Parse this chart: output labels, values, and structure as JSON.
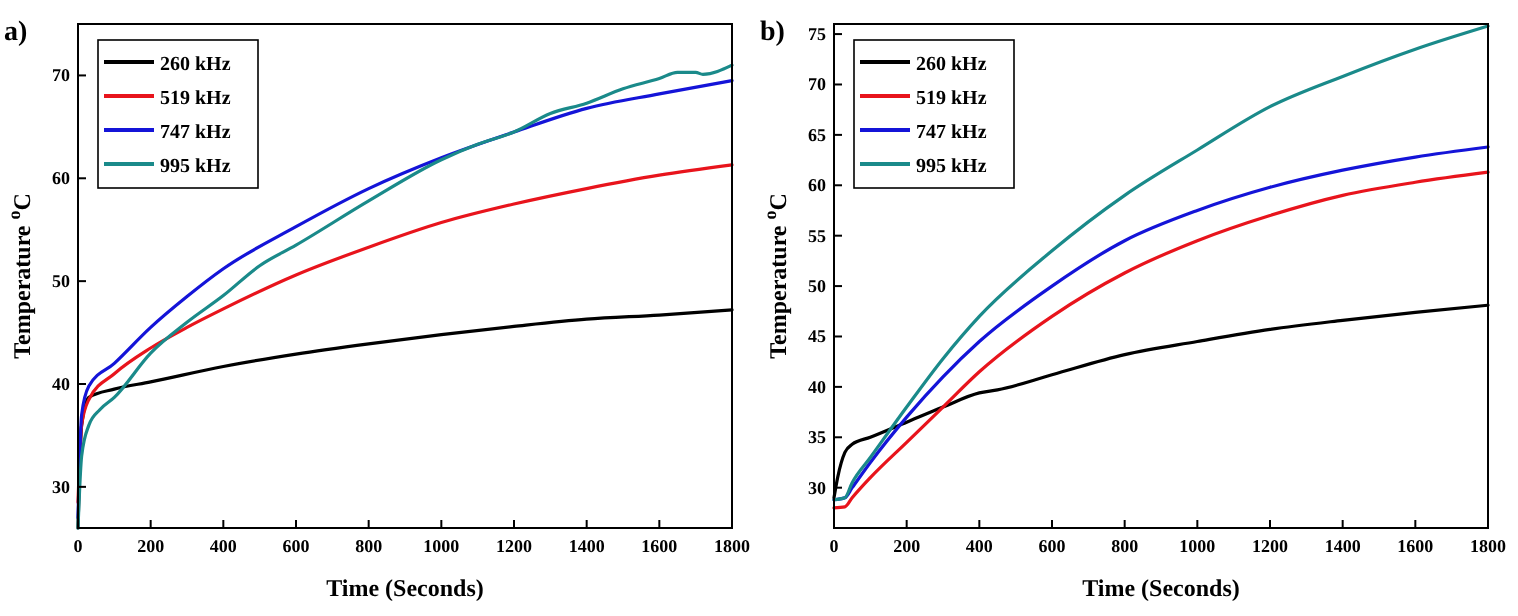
{
  "chart_data": [
    {
      "type": "line",
      "title": "a)",
      "xlabel": "Time (Seconds)",
      "ylabel": "Temperature $^{o}$C",
      "xlim": [
        0,
        1800
      ],
      "ylim": [
        26,
        75
      ],
      "xticks": [
        0,
        200,
        400,
        600,
        800,
        1000,
        1200,
        1400,
        1600,
        1800
      ],
      "yticks": [
        30,
        40,
        50,
        60,
        70
      ],
      "legend": "top left",
      "grid": false,
      "series": [
        {
          "name": "260 kHz",
          "color": "#000000",
          "x": [
            0,
            10,
            30,
            100,
            200,
            400,
            600,
            800,
            1000,
            1200,
            1400,
            1600,
            1800
          ],
          "values": [
            26,
            36,
            38.7,
            39.5,
            40.2,
            41.7,
            42.9,
            43.9,
            44.8,
            45.6,
            46.3,
            46.7,
            47.2
          ]
        },
        {
          "name": "519 kHz",
          "color": "#e8141c",
          "x": [
            0,
            10,
            30,
            100,
            200,
            300,
            400,
            600,
            800,
            1000,
            1200,
            1400,
            1600,
            1800
          ],
          "values": [
            28.5,
            36,
            38.5,
            41,
            43.5,
            45.5,
            47.3,
            50.6,
            53.3,
            55.7,
            57.5,
            59,
            60.3,
            61.3
          ]
        },
        {
          "name": "747 kHz",
          "color": "#1414d8",
          "x": [
            0,
            10,
            30,
            100,
            200,
            300,
            400,
            600,
            800,
            1000,
            1200,
            1400,
            1600,
            1800
          ],
          "values": [
            27,
            37,
            39.8,
            42,
            45.5,
            48.5,
            51.2,
            55.3,
            59,
            62,
            64.5,
            66.8,
            68.2,
            69.5
          ]
        },
        {
          "name": "995 kHz",
          "color": "#1a8a8a",
          "x": [
            0,
            10,
            30,
            60,
            100,
            200,
            300,
            400,
            500,
            600,
            800,
            1000,
            1100,
            1200,
            1300,
            1400,
            1500,
            1600,
            1650,
            1700,
            1720,
            1800
          ],
          "values": [
            26,
            33,
            36,
            37.5,
            38.7,
            43,
            46,
            48.6,
            51.5,
            53.5,
            57.8,
            61.8,
            63.3,
            64.5,
            66.3,
            67.3,
            68.7,
            69.7,
            70.3,
            70.3,
            70.1,
            71
          ]
        }
      ]
    },
    {
      "type": "line",
      "title": "b)",
      "xlabel": "Time (Seconds)",
      "ylabel": "Temperature $^{o}$C",
      "xlim": [
        0,
        1800
      ],
      "ylim": [
        26,
        76
      ],
      "xticks": [
        0,
        200,
        400,
        600,
        800,
        1000,
        1200,
        1400,
        1600,
        1800
      ],
      "yticks": [
        30,
        35,
        40,
        45,
        50,
        55,
        60,
        65,
        70,
        75
      ],
      "legend": "top left",
      "grid": false,
      "series": [
        {
          "name": "260 kHz",
          "color": "#000000",
          "x": [
            0,
            10,
            30,
            50,
            100,
            200,
            300,
            400,
            450,
            600,
            800,
            1000,
            1200,
            1400,
            1600,
            1800
          ],
          "values": [
            29,
            31,
            33.5,
            34.3,
            35,
            36.5,
            38,
            39.4,
            39.7,
            41.2,
            43.2,
            44.5,
            45.7,
            46.6,
            47.4,
            48.1
          ]
        },
        {
          "name": "519 kHz",
          "color": "#e8141c",
          "x": [
            0,
            30,
            50,
            100,
            200,
            300,
            400,
            600,
            800,
            1000,
            1200,
            1400,
            1600,
            1800
          ],
          "values": [
            28,
            28.1,
            29,
            31,
            34.5,
            38,
            41.5,
            47,
            51.3,
            54.5,
            57,
            59,
            60.3,
            61.3
          ]
        },
        {
          "name": "747 kHz",
          "color": "#1414d8",
          "x": [
            0,
            30,
            50,
            100,
            200,
            300,
            400,
            600,
            800,
            1000,
            1200,
            1400,
            1600,
            1800
          ],
          "values": [
            28.8,
            29,
            30,
            32.5,
            37,
            41,
            44.5,
            50,
            54.5,
            57.5,
            59.8,
            61.5,
            62.8,
            63.8
          ]
        },
        {
          "name": "995 kHz",
          "color": "#1a8a8a",
          "x": [
            0,
            30,
            50,
            100,
            200,
            300,
            400,
            600,
            800,
            1000,
            1200,
            1400,
            1600,
            1800
          ],
          "values": [
            28.8,
            29,
            30.5,
            33,
            38,
            42.8,
            47,
            53.5,
            59,
            63.5,
            67.8,
            70.8,
            73.5,
            75.8
          ]
        }
      ]
    }
  ]
}
